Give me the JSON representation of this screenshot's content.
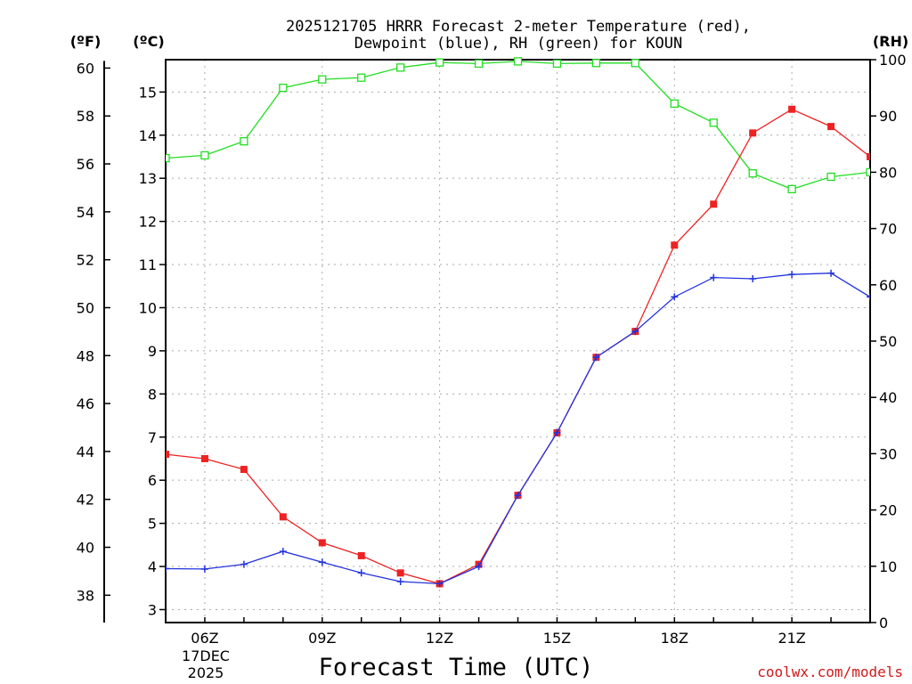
{
  "chart_data": {
    "type": "line",
    "title_line1": "2025121705 HRRR Forecast 2-meter Temperature (red),",
    "title_line2": "Dewpoint (blue), RH (green) for KOUN",
    "xlabel": "Forecast Time (UTC)",
    "unit_labels": {
      "fahrenheit": "(ºF)",
      "celsius": "(ºC)",
      "rh": "(RH)"
    },
    "x_hours": [
      5,
      6,
      7,
      8,
      9,
      10,
      11,
      12,
      13,
      14,
      15,
      16,
      17,
      18,
      19,
      20,
      21,
      22,
      23
    ],
    "x_tick_labels": [
      {
        "hour": 6,
        "label": "06Z"
      },
      {
        "hour": 9,
        "label": "09Z"
      },
      {
        "hour": 12,
        "label": "12Z"
      },
      {
        "hour": 15,
        "label": "15Z"
      },
      {
        "hour": 18,
        "label": "18Z"
      },
      {
        "hour": 21,
        "label": "21Z"
      }
    ],
    "date_label": [
      "17DEC",
      "2025"
    ],
    "xlim": [
      5,
      23
    ],
    "celsius_axis": {
      "min": 2.7,
      "max": 15.75,
      "ticks": [
        3,
        4,
        5,
        6,
        7,
        8,
        9,
        10,
        11,
        12,
        13,
        14,
        15
      ]
    },
    "fahrenheit_axis": {
      "ticks": [
        38,
        40,
        42,
        44,
        46,
        48,
        50,
        52,
        54,
        56,
        58,
        60
      ]
    },
    "rh_axis": {
      "min": 0,
      "max": 100,
      "ticks": [
        0,
        10,
        20,
        30,
        40,
        50,
        60,
        70,
        80,
        90,
        100
      ]
    },
    "series": [
      {
        "name": "Temperature",
        "color": "#ee2222",
        "axis": "celsius",
        "marker": "filled-square",
        "values": [
          6.6,
          6.5,
          6.25,
          5.15,
          4.55,
          4.25,
          3.85,
          3.6,
          4.05,
          5.65,
          7.1,
          8.85,
          9.45,
          11.45,
          12.4,
          14.05,
          14.6,
          14.2,
          13.5
        ]
      },
      {
        "name": "Dewpoint",
        "color": "#2233dd",
        "axis": "celsius",
        "marker": "plus",
        "values": [
          3.95,
          3.94,
          4.05,
          4.35,
          4.1,
          3.85,
          3.65,
          3.6,
          4.0,
          5.65,
          7.1,
          8.85,
          9.45,
          10.25,
          10.7,
          10.67,
          10.77,
          10.8,
          10.25
        ]
      },
      {
        "name": "RH",
        "color": "#22dd22",
        "axis": "rh",
        "marker": "open-square",
        "values": [
          82.5,
          83,
          85.5,
          95,
          96.5,
          96.8,
          98.6,
          99.5,
          99.3,
          99.7,
          99.3,
          99.4,
          99.4,
          92.2,
          88.8,
          79.8,
          77,
          79.2,
          80
        ]
      }
    ]
  },
  "credit": "coolwx.com/models"
}
